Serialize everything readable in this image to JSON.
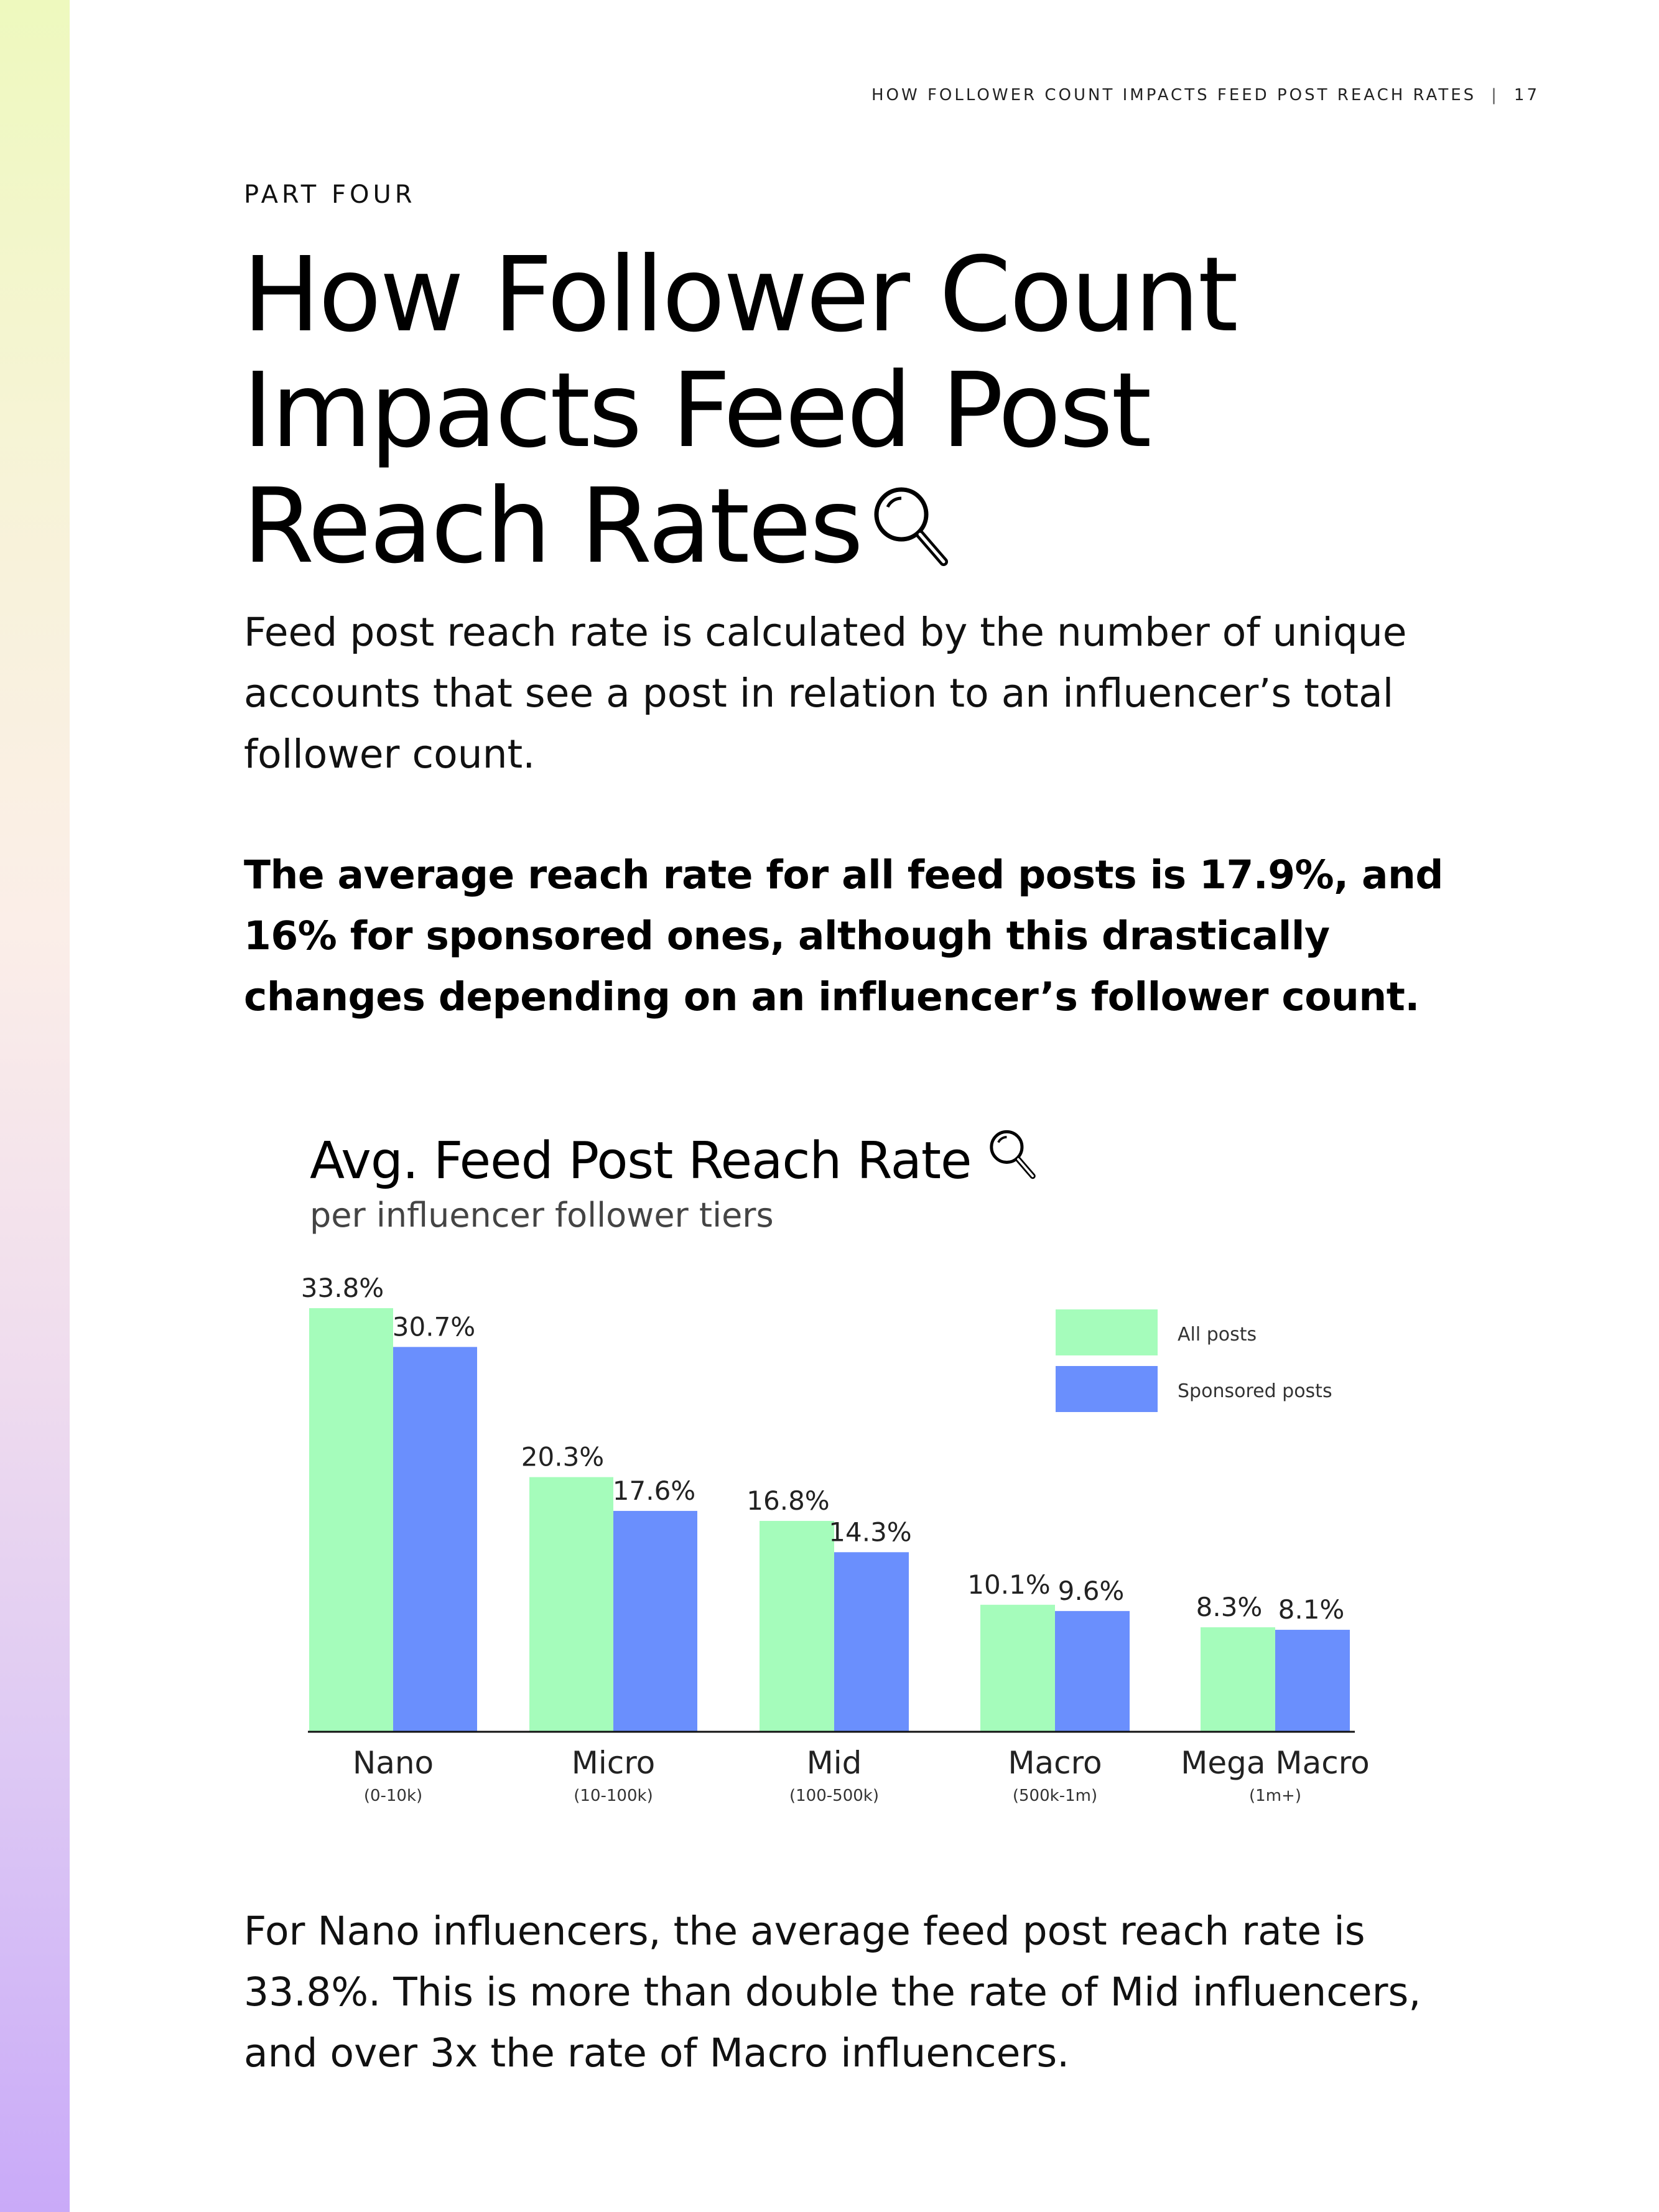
{
  "header": {
    "running_title": "HOW FOLLOWER COUNT IMPACTS FEED POST REACH RATES",
    "separator": "|",
    "page_number": "17"
  },
  "section": {
    "part_label": "PART FOUR",
    "title_lines": [
      "How Follower Count",
      "Impacts Feed Post",
      "Reach Rates"
    ]
  },
  "body": {
    "intro": "Feed post reach rate is calculated by the number of unique accounts that see a post in relation to an influencer’s total follower count.",
    "highlight": "The average reach rate for all feed posts is 17.9%, and 16% for sponsored ones, although this drastically changes depending on an influencer’s follower count.",
    "closing": "For Nano influencers, the average feed post reach rate is 33.8%. This is more than double the rate of Mid influencers, and over 3x the rate of Macro influencers."
  },
  "chart_data": {
    "type": "bar",
    "title": "Avg. Feed Post Reach Rate",
    "subtitle": "per influencer follower tiers",
    "categories": [
      "Nano",
      "Micro",
      "Mid",
      "Macro",
      "Mega Macro"
    ],
    "category_ranges": [
      "(0-10k)",
      "(10-100k)",
      "(100-500k)",
      "(500k-1m)",
      "(1m+)"
    ],
    "series": [
      {
        "name": "All posts",
        "color": "#a5fcbb",
        "values": [
          33.8,
          20.3,
          16.8,
          10.1,
          8.3
        ],
        "labels": [
          "33.8%",
          "20.3%",
          "16.8%",
          "10.1%",
          "8.3%"
        ]
      },
      {
        "name": "Sponsored posts",
        "color": "#6a8ffd",
        "values": [
          30.7,
          17.6,
          14.3,
          9.6,
          8.1
        ],
        "labels": [
          "30.7%",
          "17.6%",
          "14.3%",
          "9.6%",
          "8.1%"
        ]
      }
    ],
    "ylim": [
      0,
      33.8
    ],
    "legend_position": "top-right",
    "grid": false
  }
}
